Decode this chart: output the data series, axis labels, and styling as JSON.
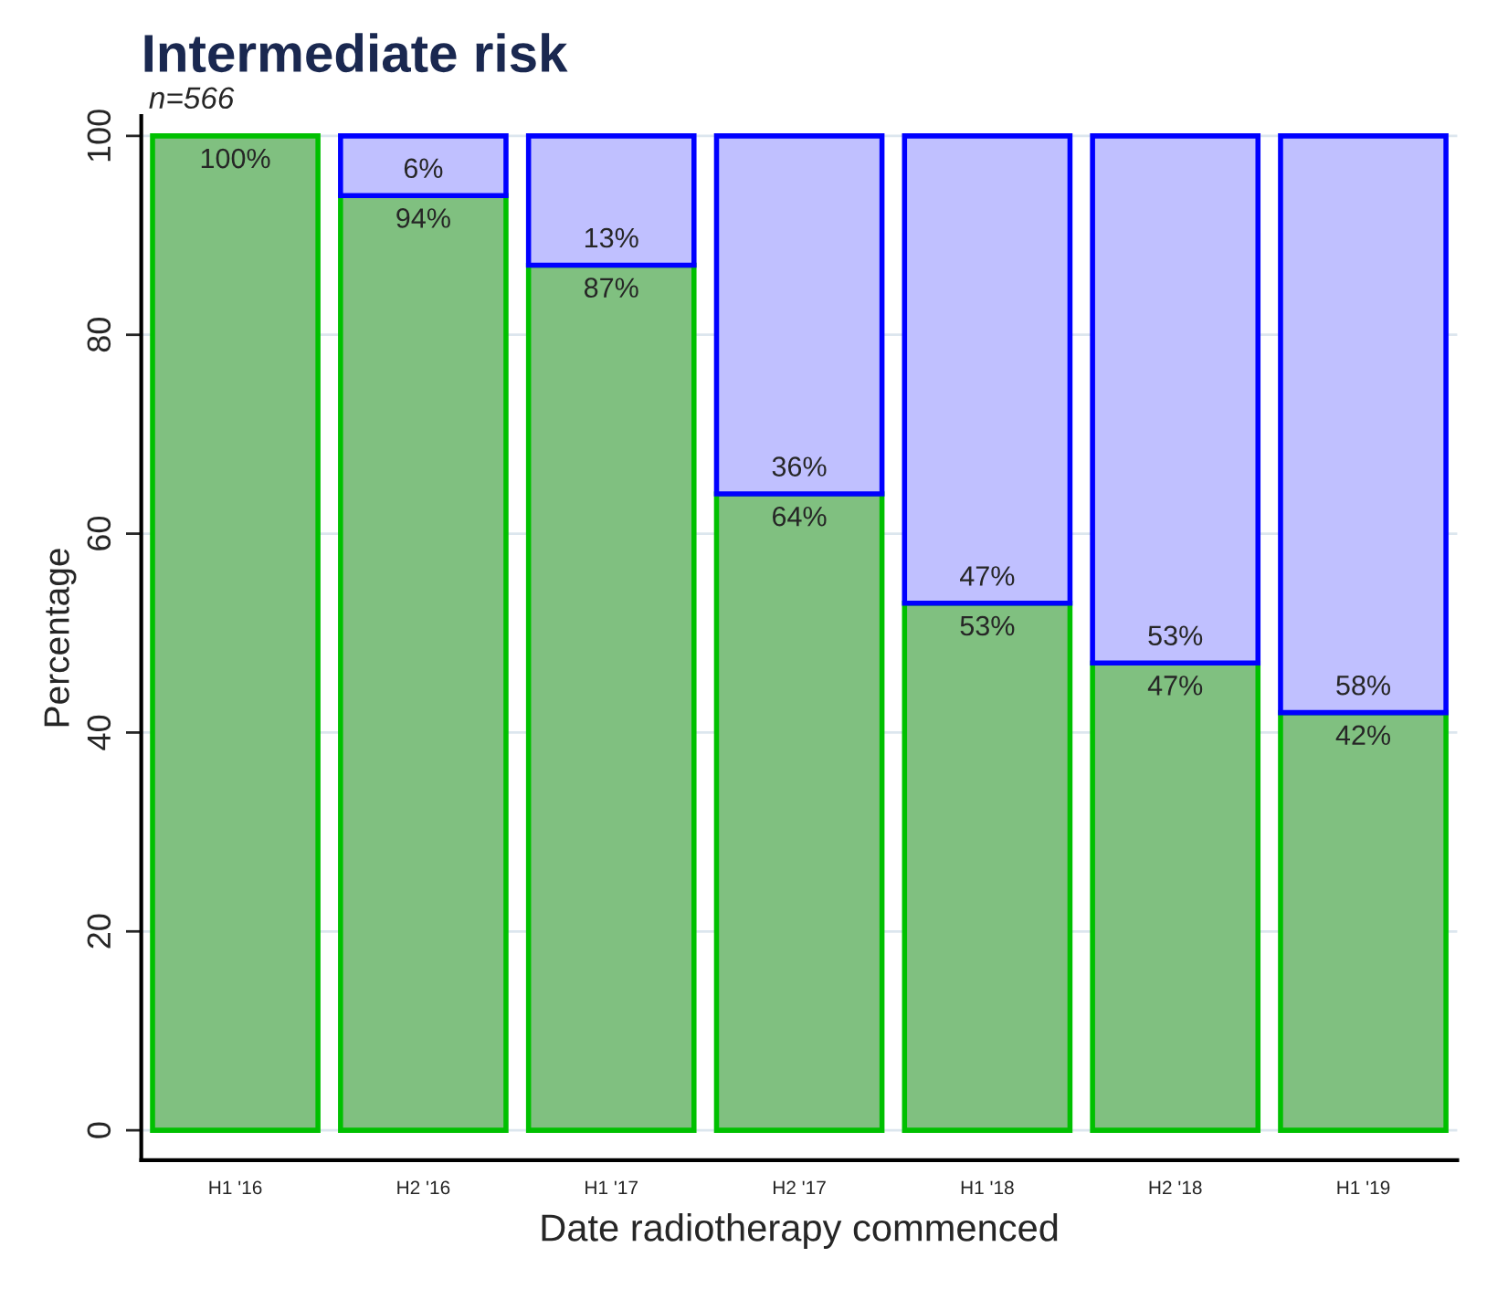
{
  "chart_data": {
    "type": "bar",
    "title": "Intermediate risk",
    "subtitle": "n=566",
    "xlabel": "Date radiotherapy commenced",
    "ylabel": "Percentage",
    "categories": [
      "H1 '16",
      "H2 '16",
      "H1 '17",
      "H2 '17",
      "H1 '18",
      "H2 '18",
      "H1 '19"
    ],
    "stacked": true,
    "series": [
      {
        "color": "#80c080",
        "values": [
          100,
          94,
          87,
          64,
          53,
          47,
          42
        ],
        "value_labels": [
          "100%",
          "94%",
          "87%",
          "64%",
          "53%",
          "47%",
          "42%"
        ]
      },
      {
        "color": "#c0c0ff",
        "values": [
          0,
          6,
          13,
          36,
          47,
          53,
          58
        ],
        "value_labels": [
          null,
          "6%",
          "13%",
          "36%",
          "47%",
          "53%",
          "58%"
        ]
      }
    ],
    "ylim": [
      -3,
      102
    ],
    "yticks": [
      0,
      20,
      40,
      60,
      80,
      100
    ],
    "grid": "y"
  }
}
